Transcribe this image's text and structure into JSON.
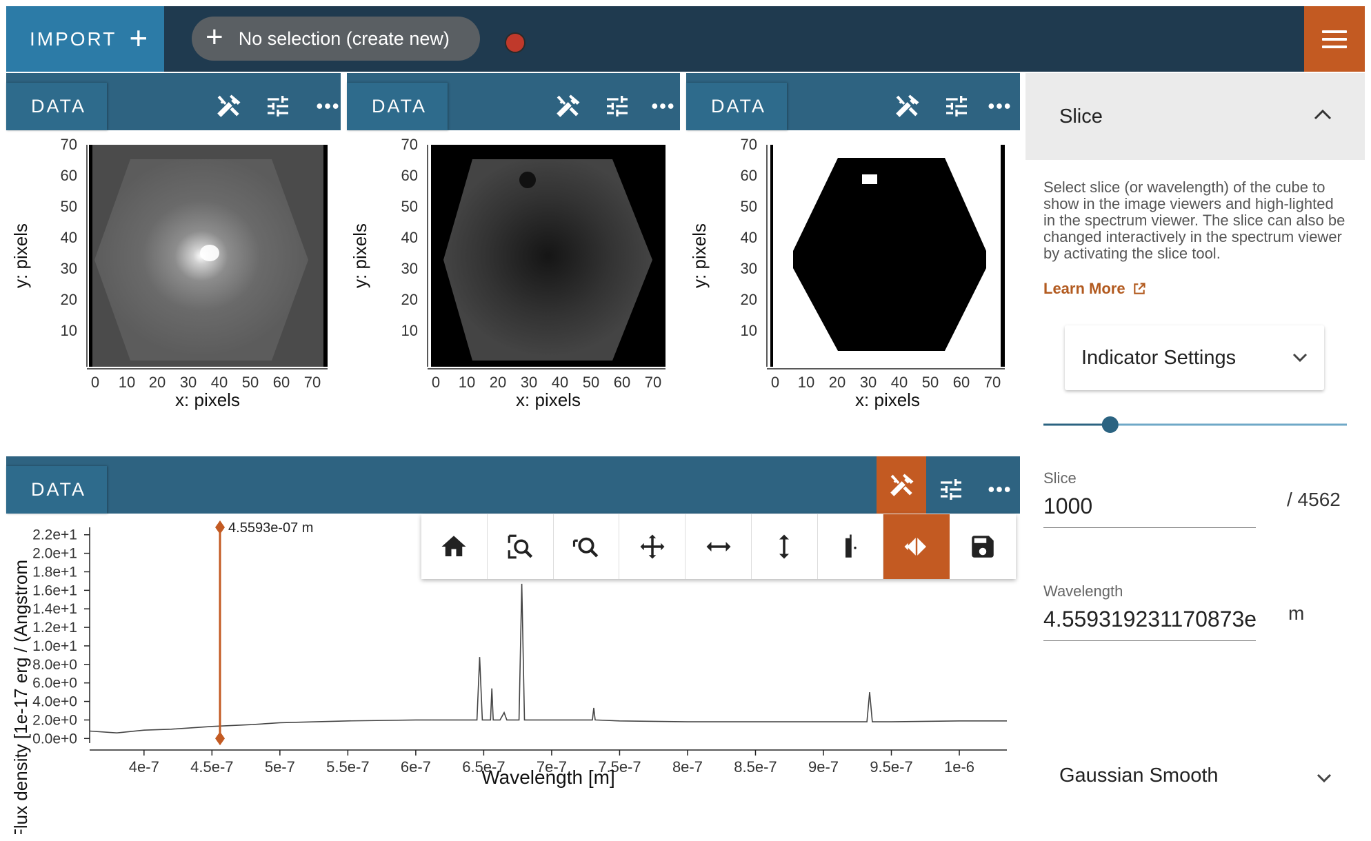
{
  "topbar": {
    "import_label": "IMPORT",
    "selection_label": "No selection (create new)",
    "colors": {
      "bar": "#1f3a4f",
      "import": "#2c7ba7",
      "menu": "#c35a22",
      "record": "#c0392b"
    }
  },
  "viewers": [
    {
      "tab": "DATA",
      "xlabel": "x: pixels",
      "ylabel": "y: pixels",
      "x_ticks": [
        "0",
        "10",
        "20",
        "30",
        "40",
        "50",
        "60",
        "70"
      ],
      "y_ticks": [
        "70",
        "60",
        "50",
        "40",
        "30",
        "20",
        "10"
      ],
      "image": "gray-galaxy"
    },
    {
      "tab": "DATA",
      "xlabel": "x: pixels",
      "ylabel": "y: pixels",
      "x_ticks": [
        "0",
        "10",
        "20",
        "30",
        "40",
        "50",
        "60",
        "70"
      ],
      "y_ticks": [
        "70",
        "60",
        "50",
        "40",
        "30",
        "20",
        "10"
      ],
      "image": "dark-hexagon"
    },
    {
      "tab": "DATA",
      "xlabel": "x: pixels",
      "ylabel": "y: pixels",
      "x_ticks": [
        "0",
        "10",
        "20",
        "30",
        "40",
        "50",
        "60",
        "70"
      ],
      "y_ticks": [
        "70",
        "60",
        "50",
        "40",
        "30",
        "20",
        "10"
      ],
      "image": "black-hexagon-mask"
    }
  ],
  "spectrum_viewer": {
    "tab": "DATA",
    "slice_indicator_label": "4.5593e-07 m",
    "toolbar_icons": [
      "home-icon",
      "box-zoom-icon",
      "xy-zoom-icon",
      "pan-icon",
      "pan-x-icon",
      "pan-y-icon",
      "slice-icon",
      "slice-active-icon",
      "save-icon"
    ]
  },
  "chart_data": {
    "type": "line",
    "title": "",
    "xlabel": "Wavelength [m]",
    "ylabel": "Flux density [1e-17 erg / (Angstrom",
    "x_tick_labels": [
      "4e-7",
      "4.5e-7",
      "5e-7",
      "5.5e-7",
      "6e-7",
      "6.5e-7",
      "7e-7",
      "7.5e-7",
      "8e-7",
      "8.5e-7",
      "9e-7",
      "9.5e-7",
      "1e-6"
    ],
    "x_ticks": [
      4e-07,
      4.5e-07,
      5e-07,
      5.5e-07,
      6e-07,
      6.5e-07,
      7e-07,
      7.5e-07,
      8e-07,
      8.5e-07,
      9e-07,
      9.5e-07,
      1e-06
    ],
    "y_tick_labels": [
      "0.0e+0",
      "2.0e+0",
      "4.0e+0",
      "6.0e+0",
      "8.0e+0",
      "1.0e+1",
      "1.2e+1",
      "1.4e+1",
      "1.6e+1",
      "1.8e+1",
      "2.0e+1",
      "2.2e+1"
    ],
    "y_ticks": [
      0,
      2,
      4,
      6,
      8,
      10,
      12,
      14,
      16,
      18,
      20,
      22
    ],
    "xlim": [
      3.6e-07,
      1.035e-06
    ],
    "ylim": [
      -0.5,
      22.8
    ],
    "slice_wavelength": 4.5593e-07,
    "series": [
      {
        "x": [
          3.6e-07,
          3.8e-07,
          4e-07,
          4.2e-07,
          4.5e-07,
          4.8e-07,
          5e-07,
          5.5e-07,
          6e-07,
          6.45e-07,
          6.47e-07,
          6.49e-07,
          6.55e-07,
          6.56e-07,
          6.57e-07,
          6.62e-07,
          6.65e-07,
          6.67e-07,
          6.69e-07,
          6.76e-07,
          6.78e-07,
          6.8e-07,
          6.9e-07,
          7e-07,
          7.3e-07,
          7.31e-07,
          7.32e-07,
          7.5e-07,
          8e-07,
          8.5e-07,
          9e-07,
          9.32e-07,
          9.34e-07,
          9.36e-07,
          9.5e-07,
          1e-06,
          1.035e-06
        ],
        "y": [
          0.8,
          0.6,
          0.9,
          1.0,
          1.3,
          1.5,
          1.7,
          1.9,
          2.0,
          2.0,
          8.8,
          2.0,
          2.0,
          5.4,
          2.0,
          2.0,
          2.8,
          2.0,
          2.0,
          2.0,
          16.7,
          2.0,
          2.0,
          2.0,
          2.0,
          3.3,
          2.0,
          1.9,
          1.8,
          1.8,
          1.8,
          1.8,
          5.0,
          1.8,
          1.8,
          1.9,
          1.9
        ]
      }
    ]
  },
  "plugin": {
    "title": "Slice",
    "description": "Select slice (or wavelength) of the cube to show in the image viewers and high-lighted in the spectrum viewer. The slice can also be changed interactively in the spectrum viewer by activating the slice tool.",
    "learn_more": "Learn More",
    "indicator_settings": "Indicator Settings",
    "slider_fraction": 0.22,
    "slice_label": "Slice",
    "slice_value": "1000",
    "slice_total": "/ 4562",
    "wavelength_label": "Wavelength",
    "wavelength_value": "4.559319231170873e",
    "wavelength_unit": "m",
    "gaussian_smooth": "Gaussian Smooth",
    "colors": {
      "accent": "#b25a1f",
      "slider": "#2b6381"
    }
  }
}
